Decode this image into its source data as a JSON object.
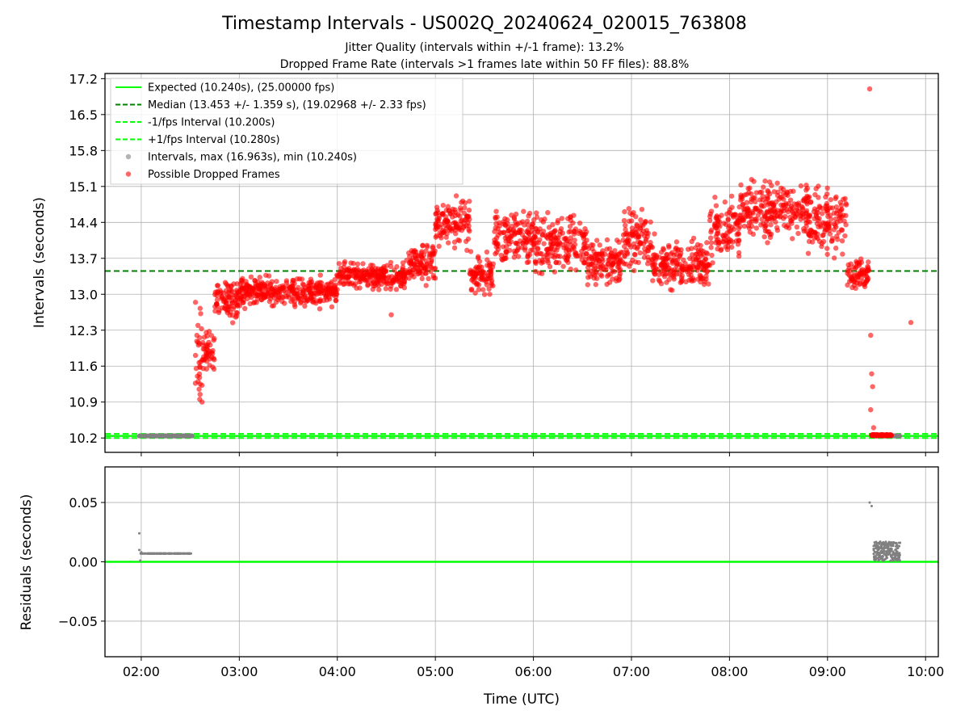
{
  "figure": {
    "title": "Timestamp Intervals - US002Q_20240624_020015_763808",
    "subtitle_1": "Jitter Quality (intervals within +/-1 frame): 13.2%",
    "subtitle_2": "Dropped Frame Rate (intervals >1 frames late within 50 FF files): 88.8%"
  },
  "chart_data": [
    {
      "type": "scatter",
      "name": "intervals",
      "xlabel": "",
      "ylabel": "Intervals (seconds)",
      "x_unit": "hours UTC",
      "xlim": [
        1.63,
        10.13
      ],
      "ylim": [
        9.92,
        17.3
      ],
      "yticks": [
        10.2,
        10.9,
        11.6,
        12.3,
        13.0,
        13.7,
        14.4,
        15.1,
        15.8,
        16.5,
        17.2
      ],
      "yticklabels": [
        "10.2",
        "10.9",
        "11.6",
        "12.3",
        "13.0",
        "13.7",
        "14.4",
        "15.1",
        "15.8",
        "16.5",
        "17.2"
      ],
      "grid": true,
      "legend_position": "top-left",
      "legend": [
        {
          "label": "Expected (10.240s), (25.00000 fps)",
          "style": "solid",
          "color": "#00ff00",
          "kind": "line"
        },
        {
          "label": "Median (13.453 +/- 1.359 s), (19.02968 +/- 2.33 fps)",
          "style": "dashed",
          "color": "#008000",
          "kind": "line"
        },
        {
          "label": "-1/fps Interval (10.200s)",
          "style": "dashed",
          "color": "#00ff00",
          "kind": "line"
        },
        {
          "label": "+1/fps Interval (10.280s)",
          "style": "dashed",
          "color": "#00ff00",
          "kind": "line"
        },
        {
          "label": "Intervals, max (16.963s), min (10.240s)",
          "color": "#808080",
          "kind": "marker"
        },
        {
          "label": "Possible Dropped Frames",
          "color": "#ff0000",
          "kind": "marker"
        }
      ],
      "reference_lines": [
        {
          "y": 10.24,
          "color": "#00ff00",
          "style": "solid"
        },
        {
          "y": 13.453,
          "color": "#008000",
          "style": "dashed"
        },
        {
          "y": 10.2,
          "color": "#00ff00",
          "style": "dashed"
        },
        {
          "y": 10.28,
          "color": "#00ff00",
          "style": "dashed"
        }
      ],
      "series": [
        {
          "name": "Intervals, max (16.963s), min (10.240s)",
          "color": "#808080",
          "points": [
            [
              1.98,
              10.24
            ],
            [
              2.1,
              10.24
            ],
            [
              2.2,
              10.24
            ],
            [
              2.3,
              10.24
            ],
            [
              2.4,
              10.24
            ],
            [
              2.5,
              10.24
            ],
            [
              9.5,
              10.24
            ],
            [
              9.6,
              10.24
            ],
            [
              9.7,
              10.24
            ],
            [
              9.74,
              10.24
            ]
          ]
        },
        {
          "name": "Possible Dropped Frames",
          "color": "#ff0000",
          "points": [
            [
              9.45,
              10.25
            ],
            [
              9.5,
              10.24
            ],
            [
              9.55,
              10.25
            ],
            [
              9.6,
              10.24
            ],
            [
              9.65,
              10.25
            ],
            [
              9.47,
              10.4
            ],
            [
              9.44,
              12.2
            ],
            [
              9.45,
              11.45
            ],
            [
              9.46,
              11.2
            ],
            [
              9.44,
              10.75
            ],
            [
              9.43,
              17.0
            ],
            [
              9.85,
              12.45
            ],
            [
              4.55,
              12.6
            ],
            [
              2.62,
              10.9
            ],
            [
              2.58,
              11.3
            ],
            [
              2.6,
              11.05
            ],
            [
              2.59,
              11.15
            ]
          ],
          "trend": [
            {
              "x_range": [
                2.55,
                2.62
              ],
              "y_mean": 11.8,
              "y_spread": 0.9
            },
            {
              "x_range": [
                2.62,
                2.75
              ],
              "y_mean": 11.9,
              "y_spread": 0.35
            },
            {
              "x_range": [
                2.75,
                3.0
              ],
              "y_mean": 12.9,
              "y_spread": 0.3
            },
            {
              "x_range": [
                3.0,
                4.0
              ],
              "y_mean": 13.05,
              "y_spread": 0.25
            },
            {
              "x_range": [
                4.0,
                4.7
              ],
              "y_mean": 13.35,
              "y_spread": 0.22
            },
            {
              "x_range": [
                4.7,
                5.0
              ],
              "y_mean": 13.6,
              "y_spread": 0.3
            },
            {
              "x_range": [
                5.0,
                5.35
              ],
              "y_mean": 14.4,
              "y_spread": 0.4
            },
            {
              "x_range": [
                5.35,
                5.6
              ],
              "y_mean": 13.4,
              "y_spread": 0.3
            },
            {
              "x_range": [
                5.6,
                6.0
              ],
              "y_mean": 14.1,
              "y_spread": 0.45
            },
            {
              "x_range": [
                6.0,
                6.55
              ],
              "y_mean": 14.0,
              "y_spread": 0.5
            },
            {
              "x_range": [
                6.55,
                6.9
              ],
              "y_mean": 13.6,
              "y_spread": 0.35
            },
            {
              "x_range": [
                6.9,
                7.2
              ],
              "y_mean": 14.1,
              "y_spread": 0.5
            },
            {
              "x_range": [
                7.2,
                7.8
              ],
              "y_mean": 13.6,
              "y_spread": 0.4
            },
            {
              "x_range": [
                7.8,
                8.1
              ],
              "y_mean": 14.2,
              "y_spread": 0.5
            },
            {
              "x_range": [
                8.1,
                8.8
              ],
              "y_mean": 14.65,
              "y_spread": 0.45
            },
            {
              "x_range": [
                8.8,
                9.2
              ],
              "y_mean": 14.4,
              "y_spread": 0.55
            },
            {
              "x_range": [
                9.2,
                9.42
              ],
              "y_mean": 13.4,
              "y_spread": 0.25
            }
          ]
        }
      ]
    },
    {
      "type": "scatter",
      "name": "residuals",
      "xlabel": "Time (UTC)",
      "ylabel": "Residuals (seconds)",
      "xlim": [
        1.63,
        10.13
      ],
      "ylim": [
        -0.08,
        0.08
      ],
      "xticks": [
        2,
        3,
        4,
        5,
        6,
        7,
        8,
        9,
        10
      ],
      "xticklabels": [
        "02:00",
        "03:00",
        "04:00",
        "05:00",
        "06:00",
        "07:00",
        "08:00",
        "09:00",
        "10:00"
      ],
      "yticks": [
        0.05,
        0.0,
        -0.05
      ],
      "yticklabels": [
        "0.05",
        "0.00",
        "−0.05"
      ],
      "grid": true,
      "reference_lines": [
        {
          "y": 0.0,
          "color": "#00ff00",
          "style": "solid"
        }
      ],
      "series": [
        {
          "name": "residuals",
          "color": "#808080",
          "points": [
            [
              1.98,
              0.024
            ],
            [
              1.98,
              0.01
            ],
            [
              1.99,
              0.001
            ],
            [
              2.0,
              0.008
            ],
            [
              2.1,
              0.007
            ],
            [
              2.2,
              0.007
            ],
            [
              2.3,
              0.007
            ],
            [
              2.4,
              0.007
            ],
            [
              2.5,
              0.007
            ],
            [
              9.43,
              0.05
            ],
            [
              9.45,
              0.047
            ],
            [
              9.5,
              0.016
            ],
            [
              9.55,
              0.009
            ],
            [
              9.6,
              0.003
            ],
            [
              9.65,
              0.014
            ],
            [
              9.7,
              0.006
            ],
            [
              9.74,
              0.016
            ]
          ]
        }
      ]
    }
  ]
}
